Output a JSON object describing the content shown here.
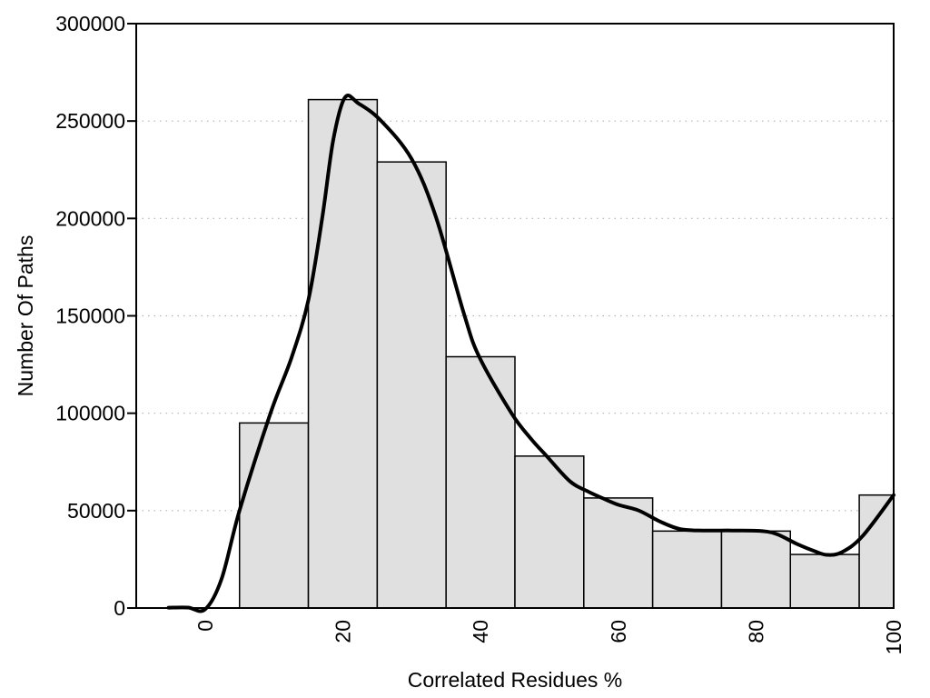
{
  "figure": {
    "background": "#ffffff",
    "text_color": "#000000"
  },
  "chart_data": {
    "type": "bar",
    "subtype": "histogram_with_smooth_line_overlay",
    "title": "",
    "xlabel": "Correlated Residues %",
    "ylabel": "Number Of Paths",
    "xlim": [
      -10,
      100
    ],
    "ylim": [
      0,
      300000
    ],
    "x_ticks": [
      0,
      20,
      40,
      60,
      80,
      100
    ],
    "x_tick_labels": [
      "0",
      "20",
      "40",
      "60",
      "80",
      "100"
    ],
    "x_tick_labels_rotated_deg": -90,
    "y_ticks": [
      0,
      50000,
      100000,
      150000,
      200000,
      250000,
      300000
    ],
    "y_tick_labels": [
      "0",
      "50000",
      "100000",
      "150000",
      "200000",
      "250000",
      "300000"
    ],
    "grid": {
      "horizontal": true,
      "vertical": false,
      "style": "dotted",
      "color": "#b3b3b3"
    },
    "legend_position": "none",
    "categories": [
      "5-15",
      "15-25",
      "25-35",
      "35-45",
      "45-55",
      "55-65",
      "65-75",
      "75-85",
      "85-95",
      "95-105"
    ],
    "values": [
      95000,
      261000,
      229000,
      129000,
      78000,
      56500,
      39500,
      39500,
      27500,
      58000
    ],
    "histogram": {
      "bin_edges": [
        5,
        15,
        25,
        35,
        45,
        55,
        65,
        75,
        85,
        95,
        105
      ],
      "counts": [
        95000,
        261000,
        229000,
        129000,
        78000,
        56500,
        39500,
        39500,
        27500,
        58000
      ],
      "last_bin_clipped_at_x": 100,
      "bar_fill": "#e0e0e0",
      "bar_border": "#000000",
      "bar_border_width": 1.5
    },
    "density_curve": {
      "color": "#000000",
      "stroke_width": 4,
      "points": [
        [
          -5.3,
          200
        ],
        [
          -2.5,
          250
        ],
        [
          0,
          -700
        ],
        [
          2.4,
          15000
        ],
        [
          5,
          50000
        ],
        [
          9.5,
          100000
        ],
        [
          12.5,
          128000
        ],
        [
          15,
          158000
        ],
        [
          17,
          200000
        ],
        [
          18.6,
          240000
        ],
        [
          20.3,
          262000
        ],
        [
          22.3,
          259000
        ],
        [
          25.6,
          250000
        ],
        [
          30,
          230500
        ],
        [
          33.5,
          201000
        ],
        [
          37.6,
          151000
        ],
        [
          39.8,
          129000
        ],
        [
          44.5,
          100000
        ],
        [
          47.3,
          87000
        ],
        [
          49.6,
          78000
        ],
        [
          53,
          65000
        ],
        [
          55.5,
          60000
        ],
        [
          57.7,
          56400
        ],
        [
          60,
          53000
        ],
        [
          63,
          50000
        ],
        [
          66,
          44500
        ],
        [
          69,
          40500
        ],
        [
          72.5,
          39800
        ],
        [
          76.5,
          39800
        ],
        [
          80.5,
          39600
        ],
        [
          83,
          38000
        ],
        [
          86,
          32800
        ],
        [
          88.5,
          29200
        ],
        [
          90.3,
          27300
        ],
        [
          92.5,
          28700
        ],
        [
          95.5,
          37000
        ],
        [
          100,
          58000
        ]
      ]
    },
    "axis_box": {
      "color": "#000000",
      "width": 2,
      "y_tick_mark_length": 10
    }
  }
}
